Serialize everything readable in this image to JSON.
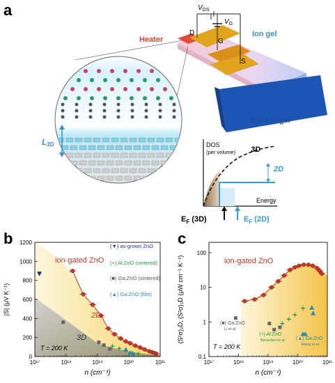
{
  "panel_a": {
    "letter": "a",
    "labels": {
      "vds": "V",
      "vds_sub": "DS",
      "vg": "V",
      "vg_sub": "G",
      "d": "D",
      "g": "G",
      "s": "S",
      "heater": "Heater",
      "ion_gel": "Ion gel",
      "cold_finger": "Cold finger",
      "l2d": "L",
      "l2d_sub": "2D"
    },
    "dos_inset": {
      "ylabel": "DOS",
      "ylabel_sub": "(per volume)",
      "xlabel": "Energy",
      "curve_3d": "3D",
      "step_2d": "2D",
      "ef3d_main": "E",
      "ef3d_sub": "F",
      "ef3d_suffix": " (3D)",
      "ef2d_main": "E",
      "ef2d_sub": "F",
      "ef2d_suffix": " (2D)",
      "colors": {
        "ef3d": "#111111",
        "ef2d": "#3d9ad6"
      }
    }
  },
  "panel_b": {
    "letter": "b",
    "title": "ion-gated ZnO",
    "temperature": "T = 200 K",
    "label_2d": "2D",
    "label_3d": "3D",
    "legend": [
      {
        "marker": "(▼)",
        "text": "as-grown ZnO",
        "color": "#1f2f7a"
      },
      {
        "marker": "(+)",
        "text": "Al:ZnO (sintered)",
        "color": "#1f9a3a"
      },
      {
        "marker": "(■)",
        "text": "Ga:ZnO (sintered)",
        "color": "#555555"
      },
      {
        "marker": "(▲)",
        "text": "Ga:ZnO (film)",
        "color": "#2a8aa8"
      }
    ],
    "colors": {
      "ion_gated": "#c0392b",
      "label_2d": "#c0392b",
      "title": "#c0392b"
    }
  },
  "panel_c": {
    "letter": "c",
    "title": "ion-gated ZnO",
    "temperature": "T = 200 K",
    "legend": [
      {
        "marker": "(■)",
        "text": "Ga:ZnO",
        "ref": "Li et al.",
        "color": "#555555"
      },
      {
        "marker": "(+)",
        "text": "Al:ZnO",
        "ref": "Bérardan et al.",
        "color": "#1f9a3a"
      },
      {
        "marker": "(▲)",
        "text": "Ga:ZnO",
        "ref": "Wang et al.",
        "color": "#2a8aa8"
      }
    ]
  },
  "chart_data": [
    {
      "type": "scatter",
      "panel": "b",
      "xlabel": "n (cm⁻³)",
      "ylabel": "|S|  (μV K⁻¹)",
      "xscale": "log",
      "xlim": [
        1e+17,
        1e+21
      ],
      "ylim": [
        0,
        1200
      ],
      "x_ticks": [
        "10¹⁷",
        "10¹⁸",
        "10¹⁹",
        "10²⁰",
        "10²¹"
      ],
      "y_ticks": [
        "0",
        "200",
        "400",
        "600",
        "800",
        "1000",
        "1200"
      ],
      "series": [
        {
          "name": "ion-gated ZnO",
          "x": [
            1.6e+18,
            3.5e+18,
            7e+18,
            1.3e+19,
            2.2e+19,
            3.5e+19,
            5.5e+19,
            8e+19,
            1.1e+20,
            1.6e+20,
            2.3e+20,
            3.2e+20,
            4.5e+20,
            5.5e+20,
            6.5e+20,
            7.5e+20
          ],
          "y": [
            900,
            655,
            545,
            430,
            295,
            235,
            190,
            160,
            140,
            115,
            95,
            75,
            55,
            45,
            38,
            30
          ]
        },
        {
          "name": "as-grown ZnO",
          "x": [
            1.4e+17
          ],
          "y": [
            870
          ]
        },
        {
          "name": "Al:ZnO (sintered)",
          "x": [
            3e+19,
            5e+19,
            8e+19,
            1.3e+20,
            2e+20
          ],
          "y": [
            110,
            85,
            65,
            40,
            30
          ]
        },
        {
          "name": "Ga:ZnO (sintered)",
          "x": [
            8e+17,
            1.1e+19,
            1.6e+19,
            2.5e+19
          ],
          "y": [
            360,
            150,
            120,
            80
          ]
        },
        {
          "name": "Ga:ZnO (film)",
          "x": [
            8e+19,
            1.1e+20,
            1.4e+20
          ],
          "y": [
            75,
            40,
            25
          ]
        }
      ]
    },
    {
      "type": "scatter",
      "panel": "c",
      "xlabel": "n (cm⁻³)",
      "ylabel": "(S²σ)₂D, (S²σ)₃D  (μW cm⁻¹ K⁻²)",
      "xscale": "log",
      "yscale": "log",
      "xlim": [
        1e+17,
        1e+21
      ],
      "ylim": [
        0.1,
        200
      ],
      "x_ticks": [
        "10¹⁷",
        "10¹⁸",
        "10¹⁹",
        "10²⁰",
        "10²¹"
      ],
      "y_ticks": [
        "0.1",
        "1",
        "10",
        "100"
      ],
      "series": [
        {
          "name": "ion-gated ZnO",
          "x": [
            1.6e+18,
            3.5e+18,
            7e+18,
            1.3e+19,
            2.2e+19,
            3.5e+19,
            5.5e+19,
            8e+19,
            1.1e+20,
            1.6e+20,
            2.3e+20,
            3.2e+20,
            4.5e+20,
            5.5e+20,
            6.5e+20
          ],
          "y": [
            4,
            4.5,
            6,
            10,
            15,
            22,
            32,
            38,
            42,
            45,
            45,
            42,
            36,
            30,
            25
          ]
        },
        {
          "name": "Ga:ZnO (Li et al.)",
          "x": [
            8e+17,
            1.1e+19,
            1.6e+19,
            2.5e+19
          ],
          "y": [
            1.3,
            0.9,
            0.6,
            0.7
          ]
        },
        {
          "name": "Al:ZnO (Bérardan et al.)",
          "x": [
            3e+19,
            5e+19,
            8e+19,
            1.5e+20
          ],
          "y": [
            0.9,
            1.2,
            1.6,
            2.5
          ]
        },
        {
          "name": "Ga:ZnO (Wang et al.)",
          "x": [
            1.5e+20,
            1.8e+20,
            3e+20,
            3.3e+20
          ],
          "y": [
            0.45,
            0.45,
            2.6,
            1.8
          ]
        }
      ]
    }
  ]
}
